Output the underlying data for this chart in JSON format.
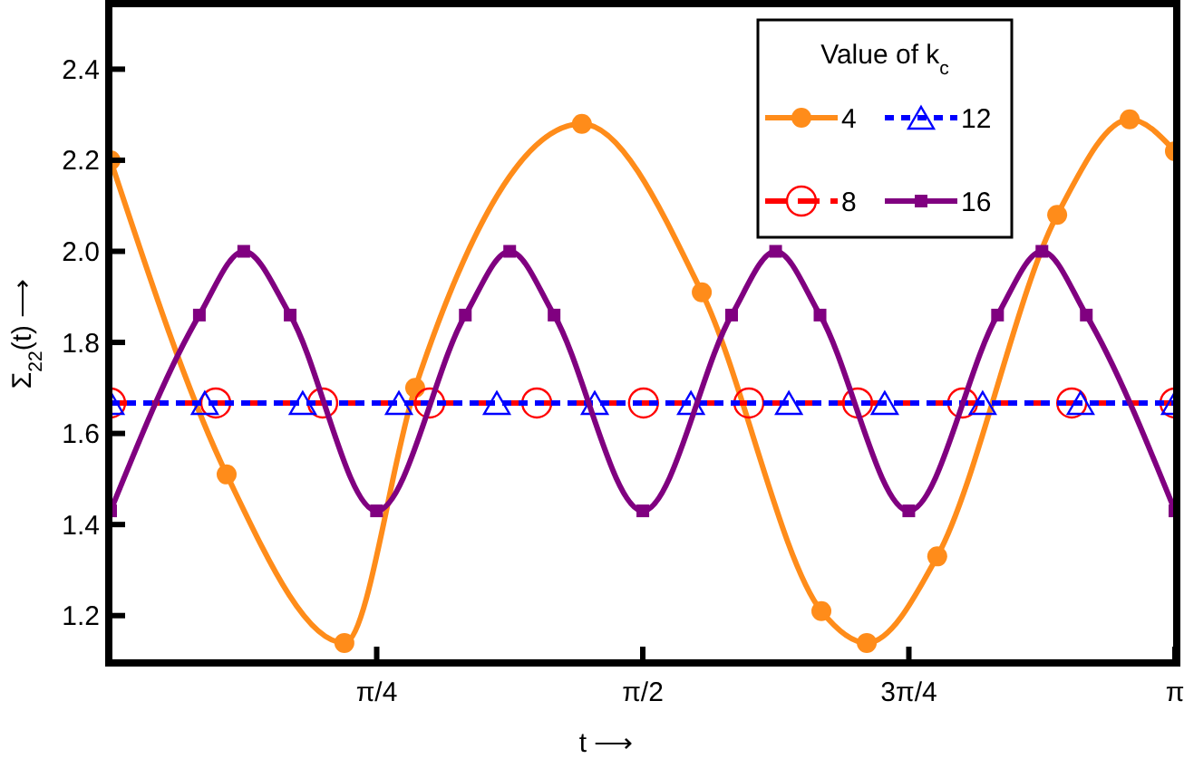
{
  "chart_data": {
    "type": "line",
    "xlabel": "t ⟶",
    "ylabel": "Σ$_{22}$(t) ⟶",
    "legend_title": "Value of k$_{c}$",
    "legend": "top right",
    "grid": false,
    "xlim": [
      0,
      3.1416
    ],
    "xticks": [
      {
        "value": 0.7854,
        "label": "π/4"
      },
      {
        "value": 1.5708,
        "label": "π/2"
      },
      {
        "value": 2.3562,
        "label": "3π/4"
      },
      {
        "value": 3.1416,
        "label": "π"
      }
    ],
    "ylim": [
      1.1,
      2.54
    ],
    "yticks": [
      1.2,
      1.4,
      1.6,
      1.8,
      {
        "value": 2,
        "label": "2.0"
      },
      2.2,
      2.4
    ],
    "series": [
      {
        "name": "4",
        "color": "#ff8c1a",
        "marker": "circle",
        "line_style": "solid",
        "x": [
          0,
          0.3425,
          0.69,
          0.899,
          1.391,
          1.745,
          2.098,
          2.232,
          2.44,
          2.794,
          3.008,
          3.1416
        ],
        "values": [
          2.2,
          1.51,
          1.14,
          1.7,
          2.28,
          1.91,
          1.21,
          1.14,
          1.33,
          2.08,
          2.29,
          2.22
        ]
      },
      {
        "name": "8",
        "color": "#ff0000",
        "marker": "circle_open",
        "line_style": "dashed",
        "x": [
          0,
          0.3104,
          0.626,
          0.942,
          1.258,
          1.573,
          1.884,
          2.205,
          2.515,
          2.837,
          3.1416
        ],
        "values": [
          1.667,
          1.667,
          1.667,
          1.667,
          1.667,
          1.667,
          1.667,
          1.667,
          1.667,
          1.667,
          1.667
        ]
      },
      {
        "name": "12",
        "color": "#0000ff",
        "marker": "triangle",
        "line_style": "dotted",
        "x": [
          0,
          0.278,
          0.567,
          0.851,
          1.14,
          1.429,
          1.713,
          2.002,
          2.285,
          2.574,
          2.863,
          3.1416
        ],
        "values": [
          1.667,
          1.667,
          1.667,
          1.667,
          1.667,
          1.667,
          1.667,
          1.667,
          1.667,
          1.667,
          1.667,
          1.667
        ]
      },
      {
        "name": "16",
        "color": "#800080",
        "marker": "square",
        "line_style": "solid",
        "x": [
          0,
          0.262,
          0.393,
          0.53,
          0.785,
          1.047,
          1.178,
          1.309,
          1.571,
          1.833,
          1.963,
          2.094,
          2.356,
          2.618,
          2.749,
          2.88,
          3.1416
        ],
        "values": [
          1.43,
          1.86,
          2.0,
          1.86,
          1.43,
          1.86,
          2.0,
          1.86,
          1.43,
          1.86,
          2.0,
          1.86,
          1.43,
          1.86,
          2.0,
          1.86,
          1.43
        ]
      }
    ]
  }
}
